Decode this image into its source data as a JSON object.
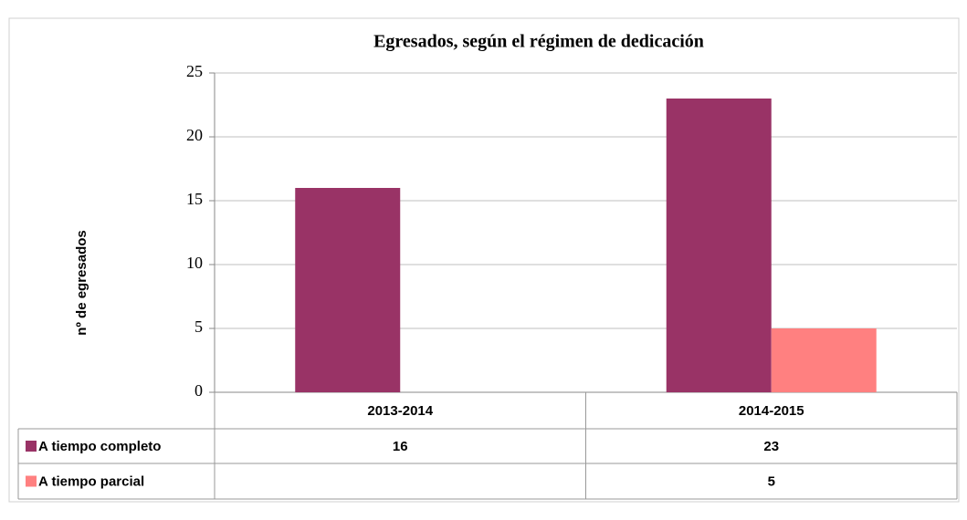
{
  "chart_data": {
    "type": "bar",
    "title": "Egresados, según el régimen de dedicación",
    "y_label": "nº de egresados",
    "categories": [
      "2013-2014",
      "2014-2015"
    ],
    "series": [
      {
        "name": "A tiempo completo",
        "color": "#993366",
        "values": [
          16,
          23
        ]
      },
      {
        "name": "A tiempo parcial",
        "color": "#ff8080",
        "values": [
          null,
          5
        ]
      }
    ],
    "ylim": [
      0,
      25
    ],
    "yticks": [
      0,
      5,
      10,
      15,
      20,
      25
    ],
    "grid": true
  }
}
